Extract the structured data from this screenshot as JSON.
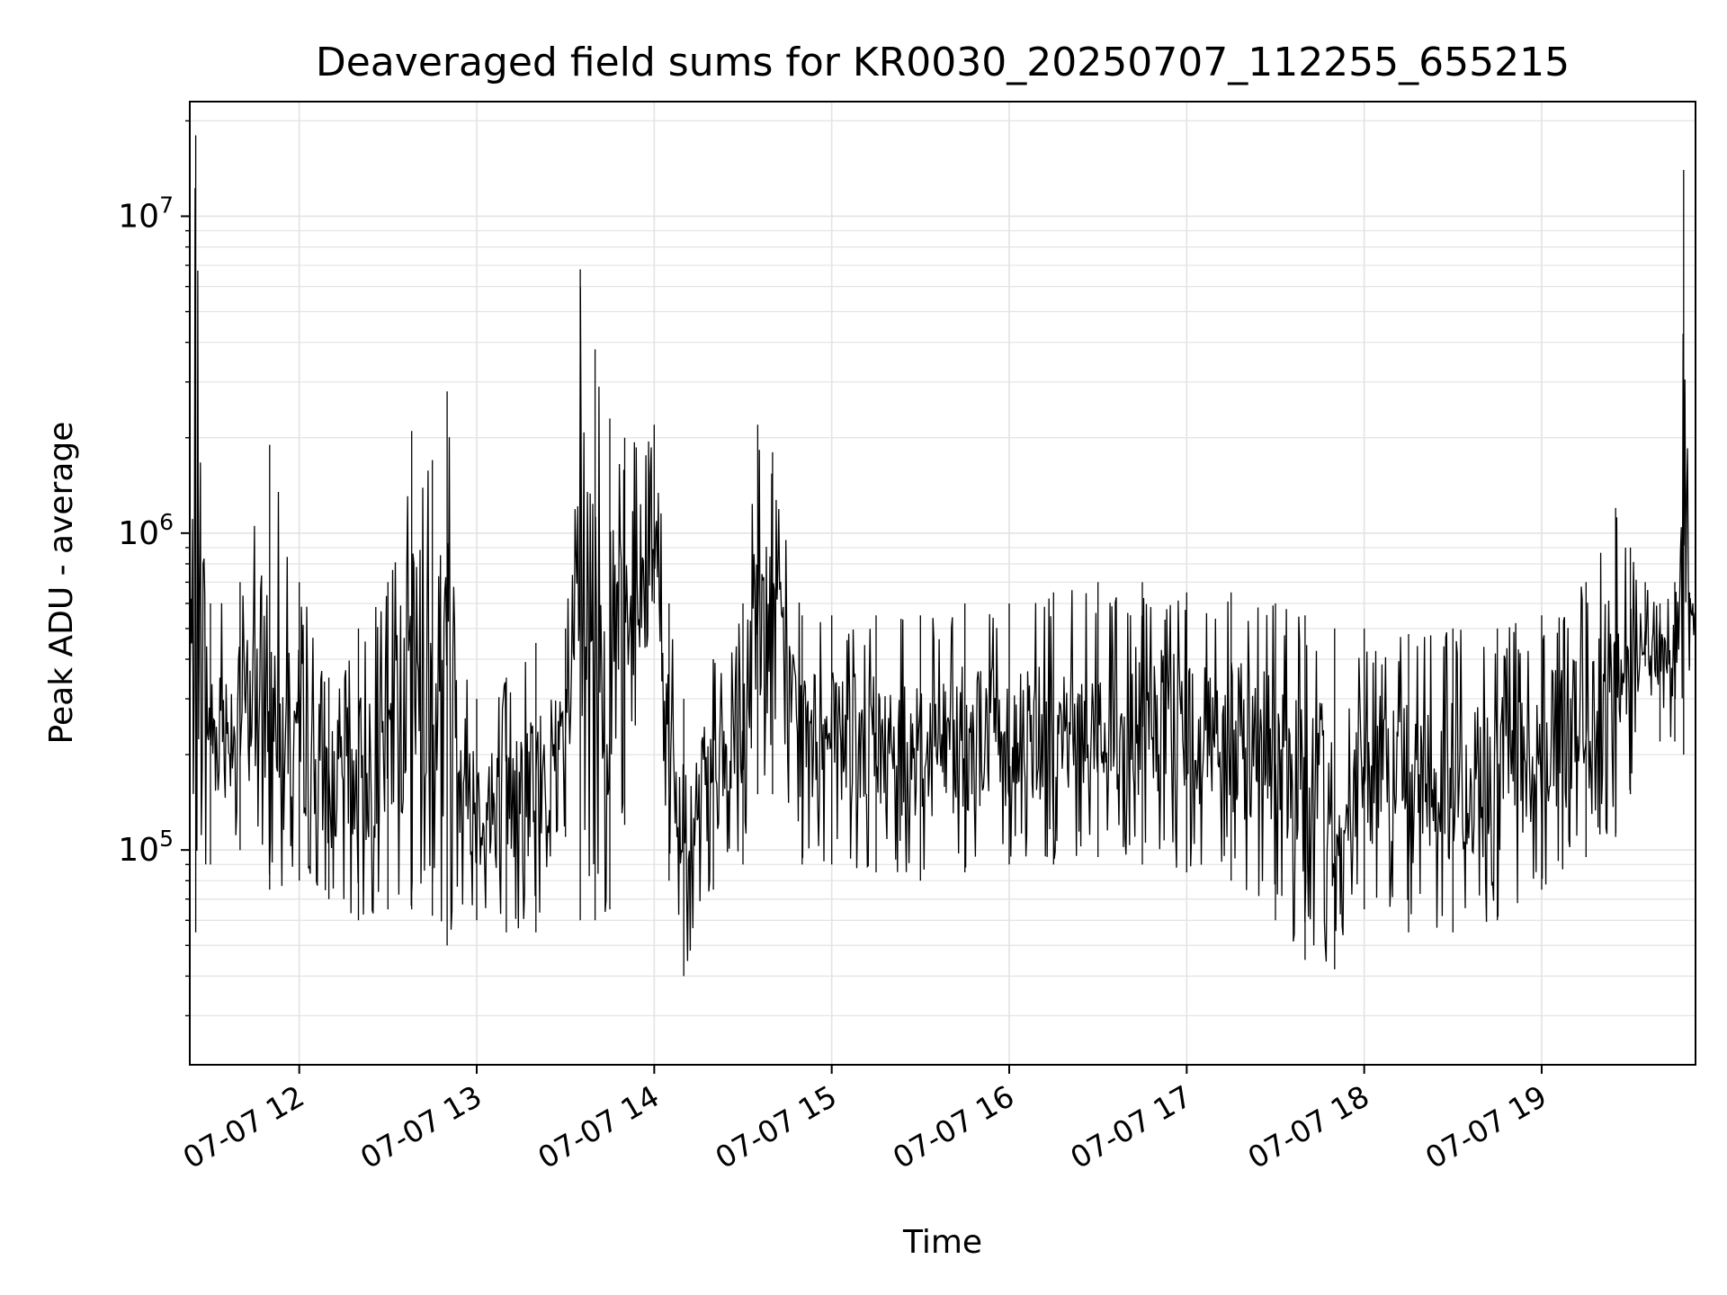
{
  "chart_data": {
    "type": "line",
    "title": "Deaveraged field sums for KR0030_20250707_112255_655215",
    "xlabel": "Time",
    "ylabel": "Peak ADU - average",
    "xlim": [
      "2025-07-07 11:23",
      "2025-07-07 19:52"
    ],
    "ylim": [
      21000,
      23000000
    ],
    "yscale": "log",
    "grid": true,
    "line_color": "#000000",
    "x_ticks": [
      "07-07 12",
      "07-07 13",
      "07-07 14",
      "07-07 15",
      "07-07 16",
      "07-07 17",
      "07-07 18",
      "07-07 19"
    ],
    "y_ticks": [
      {
        "base": "10",
        "exp": "5",
        "value": 100000
      },
      {
        "base": "10",
        "exp": "6",
        "value": 1000000
      },
      {
        "base": "10",
        "exp": "7",
        "value": 10000000
      }
    ],
    "series_sampling": "approximate envelope read from the plot; the trace alternates between low and high values within each interval",
    "series": [
      {
        "x": [
          "2025-07-07 11:23",
          "2025-07-07 11:25",
          "2025-07-07 11:30",
          "2025-07-07 11:40",
          "2025-07-07 11:50",
          "2025-07-07 12:00",
          "2025-07-07 12:10",
          "2025-07-07 12:20",
          "2025-07-07 12:30",
          "2025-07-07 12:38",
          "2025-07-07 12:45",
          "2025-07-07 12:50",
          "2025-07-07 13:00",
          "2025-07-07 13:10",
          "2025-07-07 13:20",
          "2025-07-07 13:30",
          "2025-07-07 13:35",
          "2025-07-07 13:40",
          "2025-07-07 13:45",
          "2025-07-07 13:50",
          "2025-07-07 14:00",
          "2025-07-07 14:05",
          "2025-07-07 14:10",
          "2025-07-07 14:20",
          "2025-07-07 14:30",
          "2025-07-07 14:35",
          "2025-07-07 14:40",
          "2025-07-07 14:50",
          "2025-07-07 15:00",
          "2025-07-07 15:15",
          "2025-07-07 15:30",
          "2025-07-07 15:45",
          "2025-07-07 16:00",
          "2025-07-07 16:15",
          "2025-07-07 16:30",
          "2025-07-07 16:45",
          "2025-07-07 17:00",
          "2025-07-07 17:15",
          "2025-07-07 17:30",
          "2025-07-07 17:40",
          "2025-07-07 17:50",
          "2025-07-07 18:00",
          "2025-07-07 18:15",
          "2025-07-07 18:30",
          "2025-07-07 18:45",
          "2025-07-07 19:00",
          "2025-07-07 19:15",
          "2025-07-07 19:25",
          "2025-07-07 19:30",
          "2025-07-07 19:35",
          "2025-07-07 19:40",
          "2025-07-07 19:45",
          "2025-07-07 19:48",
          "2025-07-07 19:50",
          "2025-07-07 19:52"
        ],
        "low": [
          150000,
          55000,
          90000,
          100000,
          75000,
          80000,
          70000,
          60000,
          65000,
          65000,
          62000,
          50000,
          60000,
          55000,
          55000,
          110000,
          60000,
          60000,
          65000,
          120000,
          600000,
          80000,
          40000,
          75000,
          90000,
          150000,
          150000,
          90000,
          90000,
          85000,
          80000,
          85000,
          90000,
          90000,
          95000,
          90000,
          85000,
          80000,
          60000,
          45000,
          42000,
          65000,
          55000,
          55000,
          60000,
          75000,
          95000,
          110000,
          150000,
          380000,
          220000,
          220000,
          200000,
          380000,
          480000
        ],
        "high": [
          600000,
          18000000,
          600000,
          700000,
          1900000,
          700000,
          350000,
          500000,
          700000,
          2100000,
          1700000,
          2800000,
          300000,
          350000,
          450000,
          500000,
          6800000,
          3800000,
          2300000,
          2000000,
          2200000,
          600000,
          300000,
          400000,
          600000,
          2200000,
          1800000,
          550000,
          550000,
          550000,
          550000,
          600000,
          600000,
          650000,
          700000,
          700000,
          650000,
          650000,
          600000,
          550000,
          500000,
          500000,
          480000,
          500000,
          500000,
          550000,
          700000,
          1200000,
          900000,
          700000,
          600000,
          700000,
          14000000,
          650000,
          800000
        ]
      }
    ]
  }
}
